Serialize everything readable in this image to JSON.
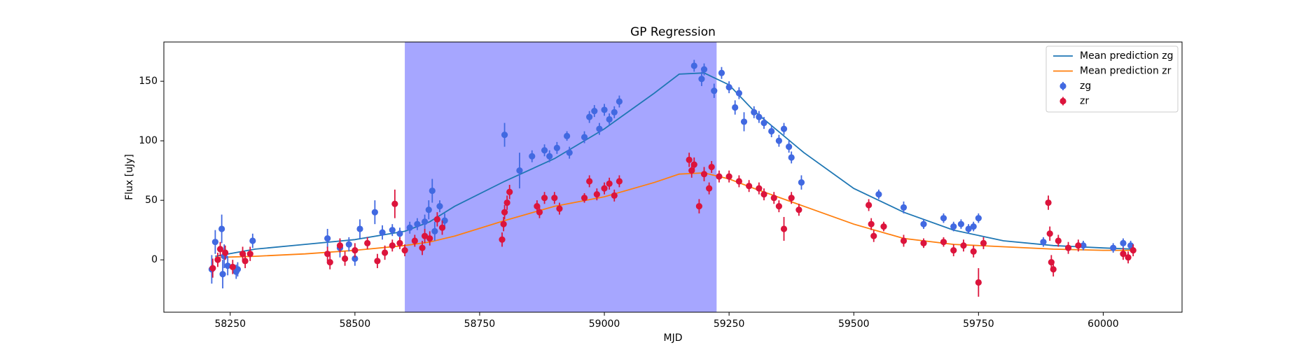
{
  "chart_data": {
    "type": "scatter",
    "title": "GP Regression",
    "xlabel": "MJD",
    "ylabel": "Flux [uJy]",
    "xlim": [
      58117,
      60158
    ],
    "ylim": [
      -44,
      183
    ],
    "xticks": [
      58250,
      58500,
      58750,
      59000,
      59250,
      59500,
      59750,
      60000
    ],
    "yticks": [
      0,
      50,
      100,
      150
    ],
    "legend": "upper right",
    "span": {
      "x": [
        58600,
        59225
      ],
      "color": "#a6a6ff"
    },
    "lines": [
      {
        "name": "Mean prediction zg",
        "color": "#1f77b4",
        "x": [
          58220,
          58300,
          58400,
          58500,
          58600,
          58650,
          58700,
          58800,
          58900,
          59000,
          59100,
          59150,
          59200,
          59250,
          59300,
          59400,
          59500,
          59600,
          59700,
          59800,
          59900,
          60000,
          60060
        ],
        "values": [
          3,
          9,
          13,
          17,
          24,
          32,
          45,
          66,
          85,
          110,
          140,
          156,
          157,
          147,
          125,
          90,
          60,
          40,
          25,
          16,
          12,
          10,
          9
        ]
      },
      {
        "name": "Mean prediction zr",
        "color": "#ff7f0e",
        "x": [
          58220,
          58300,
          58400,
          58500,
          58600,
          58650,
          58700,
          58800,
          58900,
          59000,
          59100,
          59150,
          59200,
          59250,
          59300,
          59400,
          59500,
          59600,
          59700,
          59800,
          59900,
          60000,
          60060
        ],
        "values": [
          2,
          3,
          5,
          8,
          12,
          15,
          20,
          33,
          45,
          53,
          65,
          72,
          73,
          68,
          60,
          45,
          30,
          18,
          13,
          11,
          9,
          8,
          8
        ]
      }
    ],
    "series": [
      {
        "name": "zg",
        "color": "#4169e1",
        "x": [
          58213,
          58220,
          58233,
          58235,
          58238,
          58245,
          58262,
          58265,
          58295,
          58445,
          58470,
          58488,
          58500,
          58510,
          58540,
          58555,
          58575,
          58590,
          58610,
          58625,
          58640,
          58648,
          58655,
          58660,
          58670,
          58680,
          58800,
          58830,
          58855,
          58880,
          58890,
          58905,
          58925,
          58930,
          58960,
          58970,
          58980,
          58990,
          59000,
          59010,
          59020,
          59030,
          59180,
          59195,
          59200,
          59220,
          59235,
          59250,
          59262,
          59270,
          59280,
          59300,
          59310,
          59320,
          59335,
          59350,
          59360,
          59370,
          59375,
          59395,
          59550,
          59600,
          59640,
          59680,
          59700,
          59715,
          59730,
          59740,
          59750,
          59880,
          59960,
          60020,
          60040,
          60055
        ],
        "values": [
          -8,
          15,
          26,
          -12,
          3,
          -5,
          -10,
          -8,
          16,
          18,
          10,
          13,
          1,
          26,
          40,
          23,
          25,
          22,
          27,
          30,
          32,
          42,
          58,
          24,
          45,
          33,
          105,
          75,
          87,
          92,
          87,
          94,
          104,
          90,
          103,
          120,
          125,
          110,
          126,
          118,
          124,
          133,
          163,
          152,
          160,
          142,
          157,
          145,
          128,
          140,
          116,
          124,
          120,
          115,
          108,
          100,
          110,
          95,
          86,
          65,
          55,
          44,
          30,
          35,
          28,
          30,
          26,
          28,
          35,
          15,
          12,
          10,
          14,
          12
        ],
        "errors": [
          12,
          10,
          12,
          12,
          10,
          8,
          6,
          6,
          6,
          8,
          8,
          6,
          6,
          8,
          10,
          6,
          5,
          5,
          5,
          5,
          6,
          8,
          10,
          8,
          5,
          6,
          10,
          15,
          5,
          5,
          5,
          5,
          4,
          5,
          5,
          5,
          5,
          5,
          5,
          5,
          5,
          5,
          5,
          6,
          5,
          6,
          5,
          5,
          6,
          5,
          8,
          5,
          5,
          5,
          5,
          5,
          5,
          5,
          5,
          6,
          4,
          5,
          4,
          4,
          4,
          4,
          4,
          4,
          4,
          4,
          4,
          4,
          4,
          4
        ]
      },
      {
        "name": "zr",
        "color": "#dc143c",
        "x": [
          58215,
          58225,
          58230,
          58240,
          58255,
          58275,
          58280,
          58290,
          58445,
          58450,
          58470,
          58480,
          58500,
          58525,
          58545,
          58560,
          58575,
          58580,
          58590,
          58600,
          58620,
          58635,
          58640,
          58650,
          58665,
          58675,
          58795,
          58798,
          58800,
          58805,
          58810,
          58865,
          58870,
          58880,
          58900,
          58910,
          58960,
          58970,
          58985,
          59000,
          59010,
          59020,
          59030,
          59170,
          59175,
          59180,
          59190,
          59200,
          59210,
          59215,
          59230,
          59250,
          59270,
          59290,
          59310,
          59320,
          59340,
          59350,
          59360,
          59375,
          59390,
          59530,
          59535,
          59540,
          59560,
          59600,
          59640,
          59680,
          59700,
          59720,
          59740,
          59750,
          59760,
          59890,
          59893,
          59896,
          59900,
          59910,
          59930,
          59950,
          60040,
          60050,
          60060
        ],
        "values": [
          -7,
          0,
          9,
          6,
          -6,
          5,
          -1,
          5,
          5,
          -2,
          12,
          1,
          8,
          14,
          -1,
          6,
          12,
          47,
          14,
          8,
          16,
          10,
          20,
          18,
          34,
          27,
          17,
          30,
          40,
          48,
          57,
          45,
          40,
          52,
          52,
          43,
          52,
          66,
          55,
          60,
          64,
          54,
          66,
          84,
          75,
          80,
          45,
          72,
          60,
          78,
          70,
          70,
          66,
          62,
          60,
          55,
          52,
          45,
          26,
          52,
          42,
          46,
          30,
          20,
          28,
          16,
          14,
          15,
          8,
          12,
          7,
          -19,
          14,
          48,
          22,
          -2,
          -8,
          16,
          10,
          12,
          5,
          2,
          8
        ],
        "errors": [
          8,
          6,
          6,
          6,
          6,
          6,
          6,
          6,
          6,
          6,
          6,
          6,
          6,
          5,
          6,
          6,
          5,
          12,
          5,
          5,
          5,
          6,
          6,
          6,
          6,
          6,
          6,
          6,
          6,
          6,
          6,
          5,
          5,
          5,
          5,
          5,
          4,
          5,
          5,
          5,
          5,
          5,
          5,
          6,
          6,
          6,
          6,
          6,
          5,
          5,
          5,
          5,
          5,
          5,
          5,
          5,
          5,
          5,
          10,
          5,
          5,
          5,
          5,
          5,
          4,
          5,
          4,
          4,
          5,
          5,
          5,
          12,
          5,
          6,
          6,
          6,
          6,
          5,
          5,
          5,
          5,
          5,
          5
        ]
      }
    ]
  }
}
